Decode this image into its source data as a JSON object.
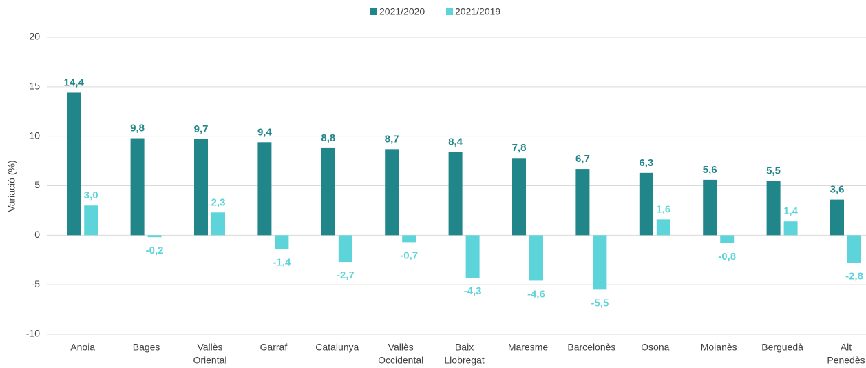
{
  "chart_data": {
    "type": "bar",
    "y_label": "Variació (%)",
    "categories": [
      [
        "Anoia"
      ],
      [
        "Bages"
      ],
      [
        "Vallès",
        "Oriental"
      ],
      [
        "Garraf"
      ],
      [
        "Catalunya"
      ],
      [
        "Vallès",
        "Occidental"
      ],
      [
        "Baix",
        "Llobregat"
      ],
      [
        "Maresme"
      ],
      [
        "Barcelonès"
      ],
      [
        "Osona"
      ],
      [
        "Moianès"
      ],
      [
        "Berguedà"
      ],
      [
        "Alt",
        "Penedès"
      ]
    ],
    "series": [
      {
        "name": "2021/2020",
        "color": "#21868a",
        "values": [
          14.4,
          9.8,
          9.7,
          9.4,
          8.8,
          8.7,
          8.4,
          7.8,
          6.7,
          6.3,
          5.6,
          5.5,
          3.6
        ],
        "value_labels": [
          "14,4",
          "9,8",
          "9,7",
          "9,4",
          "8,8",
          "8,7",
          "8,4",
          "7,8",
          "6,7",
          "6,3",
          "5,6",
          "5,5",
          "3,6"
        ]
      },
      {
        "name": "2021/2019",
        "color": "#5dd4da",
        "values": [
          3.0,
          -0.2,
          2.3,
          -1.4,
          -2.7,
          -0.7,
          -4.3,
          -4.6,
          -5.5,
          1.6,
          -0.8,
          1.4,
          -2.8
        ],
        "value_labels": [
          "3,0",
          "-0,2",
          "2,3",
          "-1,4",
          "-2,7",
          "-0,7",
          "-4,3",
          "-4,6",
          "-5,5",
          "1,6",
          "-0,8",
          "1,4",
          "-2,8"
        ]
      }
    ],
    "ylim": [
      -10,
      20
    ],
    "yticks": [
      -10,
      -5,
      0,
      5,
      10,
      15,
      20
    ],
    "grid": true,
    "legend": "top"
  }
}
